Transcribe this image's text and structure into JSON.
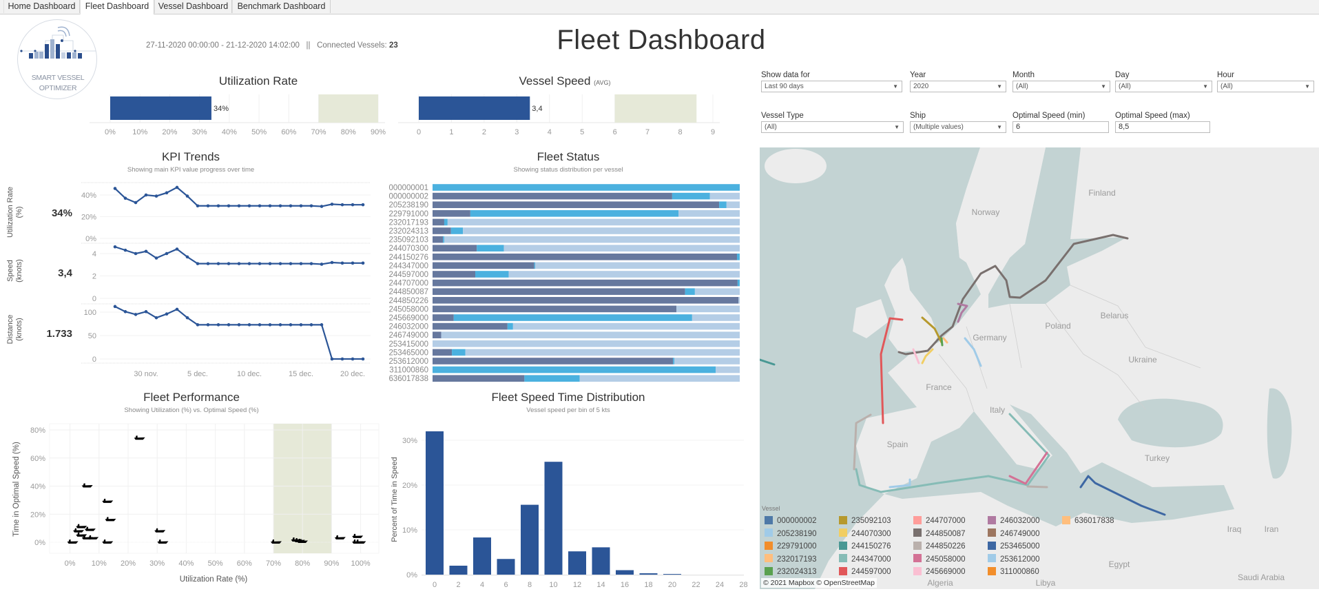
{
  "tabs": [
    {
      "label": "Home Dashboard",
      "active": false
    },
    {
      "label": "Fleet Dashboard",
      "active": true
    },
    {
      "label": "Vessel Dashboard",
      "active": false
    },
    {
      "label": "Benchmark Dashboard",
      "active": false
    }
  ],
  "header": {
    "logo_line1": "SMART VESSEL",
    "logo_line2": "OPTIMIZER",
    "date_range": "27-11-2020 00:00:00 - 21-12-2020 14:02:00",
    "separator": "||",
    "connected_label": "Connected Vessels:",
    "connected_count": "23",
    "title": "Fleet Dashboard"
  },
  "filters": [
    {
      "label": "Show data for",
      "value": "Last 90 days",
      "type": "dropdown"
    },
    {
      "label": "Year",
      "value": "2020",
      "type": "dropdown"
    },
    {
      "label": "Month",
      "value": "(All)",
      "type": "dropdown"
    },
    {
      "label": "Day",
      "value": "(All)",
      "type": "dropdown"
    },
    {
      "label": "Hour",
      "value": "(All)",
      "type": "dropdown"
    },
    {
      "label": "Vessel Type",
      "value": "(All)",
      "type": "dropdown"
    },
    {
      "label": "Ship",
      "value": "(Multiple values)",
      "type": "dropdown"
    },
    {
      "label": "Optimal Speed (min)",
      "value": "6",
      "type": "input"
    },
    {
      "label": "Optimal Speed (max)",
      "value": "8,5",
      "type": "input"
    }
  ],
  "colors": {
    "primary_bar": "#2b5597",
    "target_band": "#e6e9d8",
    "status_dark": "#66789e",
    "status_mid": "#4bb1df",
    "status_light": "#b4cde6",
    "sea": "#c3d3d3",
    "land": "#ececec"
  },
  "chart_data": [
    {
      "id": "utilization",
      "type": "bar",
      "title": "Utilization Rate",
      "value": 34,
      "value_label": "34%",
      "target_range": [
        70,
        90
      ],
      "xlim": [
        0,
        90
      ],
      "ticks": [
        "0%",
        "10%",
        "20%",
        "30%",
        "40%",
        "50%",
        "60%",
        "70%",
        "80%",
        "90%"
      ]
    },
    {
      "id": "vessel_speed",
      "type": "bar",
      "title": "Vessel Speed",
      "title_suffix": "(AVG)",
      "value": 3.4,
      "value_label": "3,4",
      "target_range": [
        6,
        8.5
      ],
      "xlim": [
        0,
        9
      ],
      "ticks": [
        "0",
        "1",
        "2",
        "3",
        "4",
        "5",
        "6",
        "7",
        "8",
        "9"
      ]
    },
    {
      "id": "kpi_trends",
      "type": "line",
      "title": "KPI Trends",
      "subtitle": "Showing main KPI value progress over time",
      "x": [
        "2020-11-27",
        "2020-11-28",
        "2020-11-29",
        "2020-11-30",
        "2020-12-01",
        "2020-12-02",
        "2020-12-03",
        "2020-12-04",
        "2020-12-05",
        "2020-12-06",
        "2020-12-07",
        "2020-12-08",
        "2020-12-09",
        "2020-12-10",
        "2020-12-11",
        "2020-12-12",
        "2020-12-13",
        "2020-12-14",
        "2020-12-15",
        "2020-12-16",
        "2020-12-17",
        "2020-12-18",
        "2020-12-19",
        "2020-12-20",
        "2020-12-21"
      ],
      "x_ticks": [
        {
          "index": 3,
          "label": "30 nov."
        },
        {
          "index": 8,
          "label": "5 dec."
        },
        {
          "index": 13,
          "label": "10 dec."
        },
        {
          "index": 18,
          "label": "15 dec."
        },
        {
          "index": 23,
          "label": "20 dec."
        }
      ],
      "panels": [
        {
          "axis_title": "Utilization Rate (%)",
          "kpi_value": "34%",
          "ylim": [
            0,
            40
          ],
          "y_ticks": [
            {
              "v": 0,
              "label": "0%"
            },
            {
              "v": 20,
              "label": "20%"
            },
            {
              "v": 40,
              "label": "40%"
            }
          ],
          "values": [
            46,
            37,
            33,
            40,
            39,
            42,
            47,
            39,
            30,
            30,
            30,
            30,
            30,
            30,
            30,
            30,
            30,
            30,
            30,
            30,
            29.5,
            31.5,
            31,
            31,
            31
          ]
        },
        {
          "axis_title": "Speed (knots)",
          "kpi_value": "3,4",
          "ylim": [
            0,
            4
          ],
          "y_ticks": [
            {
              "v": 0,
              "label": "0"
            },
            {
              "v": 2,
              "label": "2"
            },
            {
              "v": 4,
              "label": "4"
            }
          ],
          "values": [
            4.6,
            4.3,
            4.0,
            4.2,
            3.6,
            4.0,
            4.4,
            3.7,
            3.1,
            3.1,
            3.1,
            3.1,
            3.1,
            3.1,
            3.1,
            3.1,
            3.1,
            3.1,
            3.1,
            3.1,
            3.05,
            3.2,
            3.15,
            3.15,
            3.15
          ]
        },
        {
          "axis_title": "Distance (knots)",
          "kpi_value": "1.733",
          "ylim": [
            0,
            100
          ],
          "y_ticks": [
            {
              "v": 0,
              "label": "0"
            },
            {
              "v": 50,
              "label": "50"
            },
            {
              "v": 100,
              "label": "100"
            }
          ],
          "values": [
            112,
            101,
            95,
            101,
            88,
            96,
            106,
            88,
            73,
            73,
            73,
            73,
            73,
            73,
            73,
            73,
            73,
            73,
            73,
            73,
            73,
            0,
            0,
            0,
            0
          ]
        }
      ]
    },
    {
      "id": "fleet_status",
      "type": "bar",
      "stacked": true,
      "orientation": "horizontal",
      "title": "Fleet Status",
      "subtitle": "Showing status distribution per vessel",
      "categories": [
        "000000001",
        "000000002",
        "205238190",
        "229791000",
        "232017193",
        "232024313",
        "235092103",
        "244070300",
        "244150276",
        "244347000",
        "244597000",
        "244707000",
        "244850087",
        "244850226",
        "245058000",
        "245669000",
        "246032000",
        "246749000",
        "253415000",
        "253465000",
        "253612000",
        "311000860",
        "636017838"
      ],
      "series": [
        {
          "values": [
            0,
            78,
            93.3,
            12.3,
            3.8,
            6.0,
            3.4,
            14.4,
            99.1,
            33.1,
            13.9,
            99.3,
            82.2,
            99.6,
            79.4,
            6.9,
            24.4,
            2.8,
            0,
            6.3,
            78.3,
            0,
            29.9
          ]
        },
        {
          "values": [
            100,
            12.3,
            2.4,
            67.8,
            1.1,
            3.9,
            0.4,
            8.8,
            0.9,
            0.3,
            10.9,
            0.7,
            3.2,
            0,
            0,
            77.6,
            1.8,
            0,
            0,
            4.4,
            0.4,
            92.2,
            18.0
          ]
        },
        {
          "values": [
            0,
            9.7,
            4.3,
            19.9,
            95.1,
            90.1,
            96.2,
            76.8,
            0,
            66.6,
            75.2,
            0,
            14.6,
            0.4,
            20.6,
            15.5,
            73.8,
            97.2,
            100,
            89.3,
            21.3,
            7.8,
            52.1
          ]
        }
      ]
    },
    {
      "id": "fleet_performance",
      "type": "scatter",
      "title": "Fleet Performance",
      "subtitle": "Showing Utilization (%) vs. Optimal Speed (%)",
      "xlabel": "Utilization Rate (%)",
      "ylabel": "Time in Optimal Speed (%)",
      "xlim": [
        0,
        100
      ],
      "ylim": [
        0,
        80
      ],
      "x_ticks": [
        "0%",
        "10%",
        "20%",
        "30%",
        "40%",
        "50%",
        "60%",
        "70%",
        "80%",
        "90%",
        "100%"
      ],
      "y_ticks": [
        "0%",
        "20%",
        "40%",
        "60%",
        "80%"
      ],
      "target_range_x": [
        70,
        90
      ],
      "marker": "ship-icon",
      "points": [
        [
          0,
          0
        ],
        [
          2,
          8
        ],
        [
          3,
          11
        ],
        [
          3,
          5
        ],
        [
          5,
          3
        ],
        [
          5,
          40
        ],
        [
          6,
          9
        ],
        [
          7,
          3
        ],
        [
          12,
          29
        ],
        [
          13,
          16
        ],
        [
          12,
          0
        ],
        [
          23,
          74
        ],
        [
          30,
          8
        ],
        [
          31,
          0
        ],
        [
          70,
          0
        ],
        [
          77,
          1.5
        ],
        [
          78,
          1
        ],
        [
          79,
          0.5
        ],
        [
          92,
          3
        ],
        [
          98,
          4
        ],
        [
          98,
          0
        ],
        [
          99,
          0
        ]
      ]
    },
    {
      "id": "speed_distribution",
      "type": "bar",
      "title": "Fleet Speed Time Distribution",
      "subtitle": "Vessel speed per bin of 5 kts",
      "ylabel": "Percent of Time in Speed",
      "xlabel": "",
      "x_ticks": [
        "0",
        "2",
        "4",
        "6",
        "8",
        "10",
        "12",
        "14",
        "16",
        "18",
        "20",
        "22",
        "24",
        "28"
      ],
      "categories": [
        0,
        2,
        4,
        6,
        8,
        10,
        12,
        14,
        16,
        18,
        20
      ],
      "values": [
        32.0,
        2.0,
        8.3,
        3.5,
        15.6,
        25.2,
        5.2,
        6.1,
        1.0,
        0.3,
        0.15
      ],
      "ylim": [
        0,
        33
      ],
      "y_ticks": [
        {
          "v": 0,
          "label": "0%"
        },
        {
          "v": 10,
          "label": "10%"
        },
        {
          "v": 20,
          "label": "20%"
        },
        {
          "v": 30,
          "label": "30%"
        }
      ]
    }
  ],
  "map": {
    "country_labels": [
      "Finland",
      "Norway",
      "Poland",
      "Belarus",
      "Germany",
      "Ukraine",
      "France",
      "Italy",
      "Spain",
      "Turkey",
      "Algeria",
      "Libya",
      "Egypt",
      "Iraq",
      "Iran",
      "Saudi Arabia"
    ],
    "legend_title": "Vessel",
    "legend": [
      {
        "label": "000000002",
        "color": "#4e79a7"
      },
      {
        "label": "205238190",
        "color": "#a0cbe8"
      },
      {
        "label": "229791000",
        "color": "#f28e2b"
      },
      {
        "label": "232017193",
        "color": "#ffbe7d"
      },
      {
        "label": "232024313",
        "color": "#59a14f"
      },
      {
        "label": "235092103",
        "color": "#b6992d"
      },
      {
        "label": "244070300",
        "color": "#f1ce63"
      },
      {
        "label": "244150276",
        "color": "#499894"
      },
      {
        "label": "244347000",
        "color": "#86bcb6"
      },
      {
        "label": "244597000",
        "color": "#e15759"
      },
      {
        "label": "244707000",
        "color": "#ff9d9a"
      },
      {
        "label": "244850087",
        "color": "#79706e"
      },
      {
        "label": "244850226",
        "color": "#bab0ac"
      },
      {
        "label": "245058000",
        "color": "#d37295"
      },
      {
        "label": "245669000",
        "color": "#fabfd2"
      },
      {
        "label": "246032000",
        "color": "#b07aa1"
      },
      {
        "label": "246749000",
        "color": "#9d7660"
      },
      {
        "label": "253465000",
        "color": "#3d67a3"
      },
      {
        "label": "253612000",
        "color": "#a0cbe8"
      },
      {
        "label": "311000860",
        "color": "#f28e2b"
      },
      {
        "label": "636017838",
        "color": "#ffbe7d"
      }
    ],
    "attribution": "© 2021 Mapbox  © OpenStreetMap"
  }
}
